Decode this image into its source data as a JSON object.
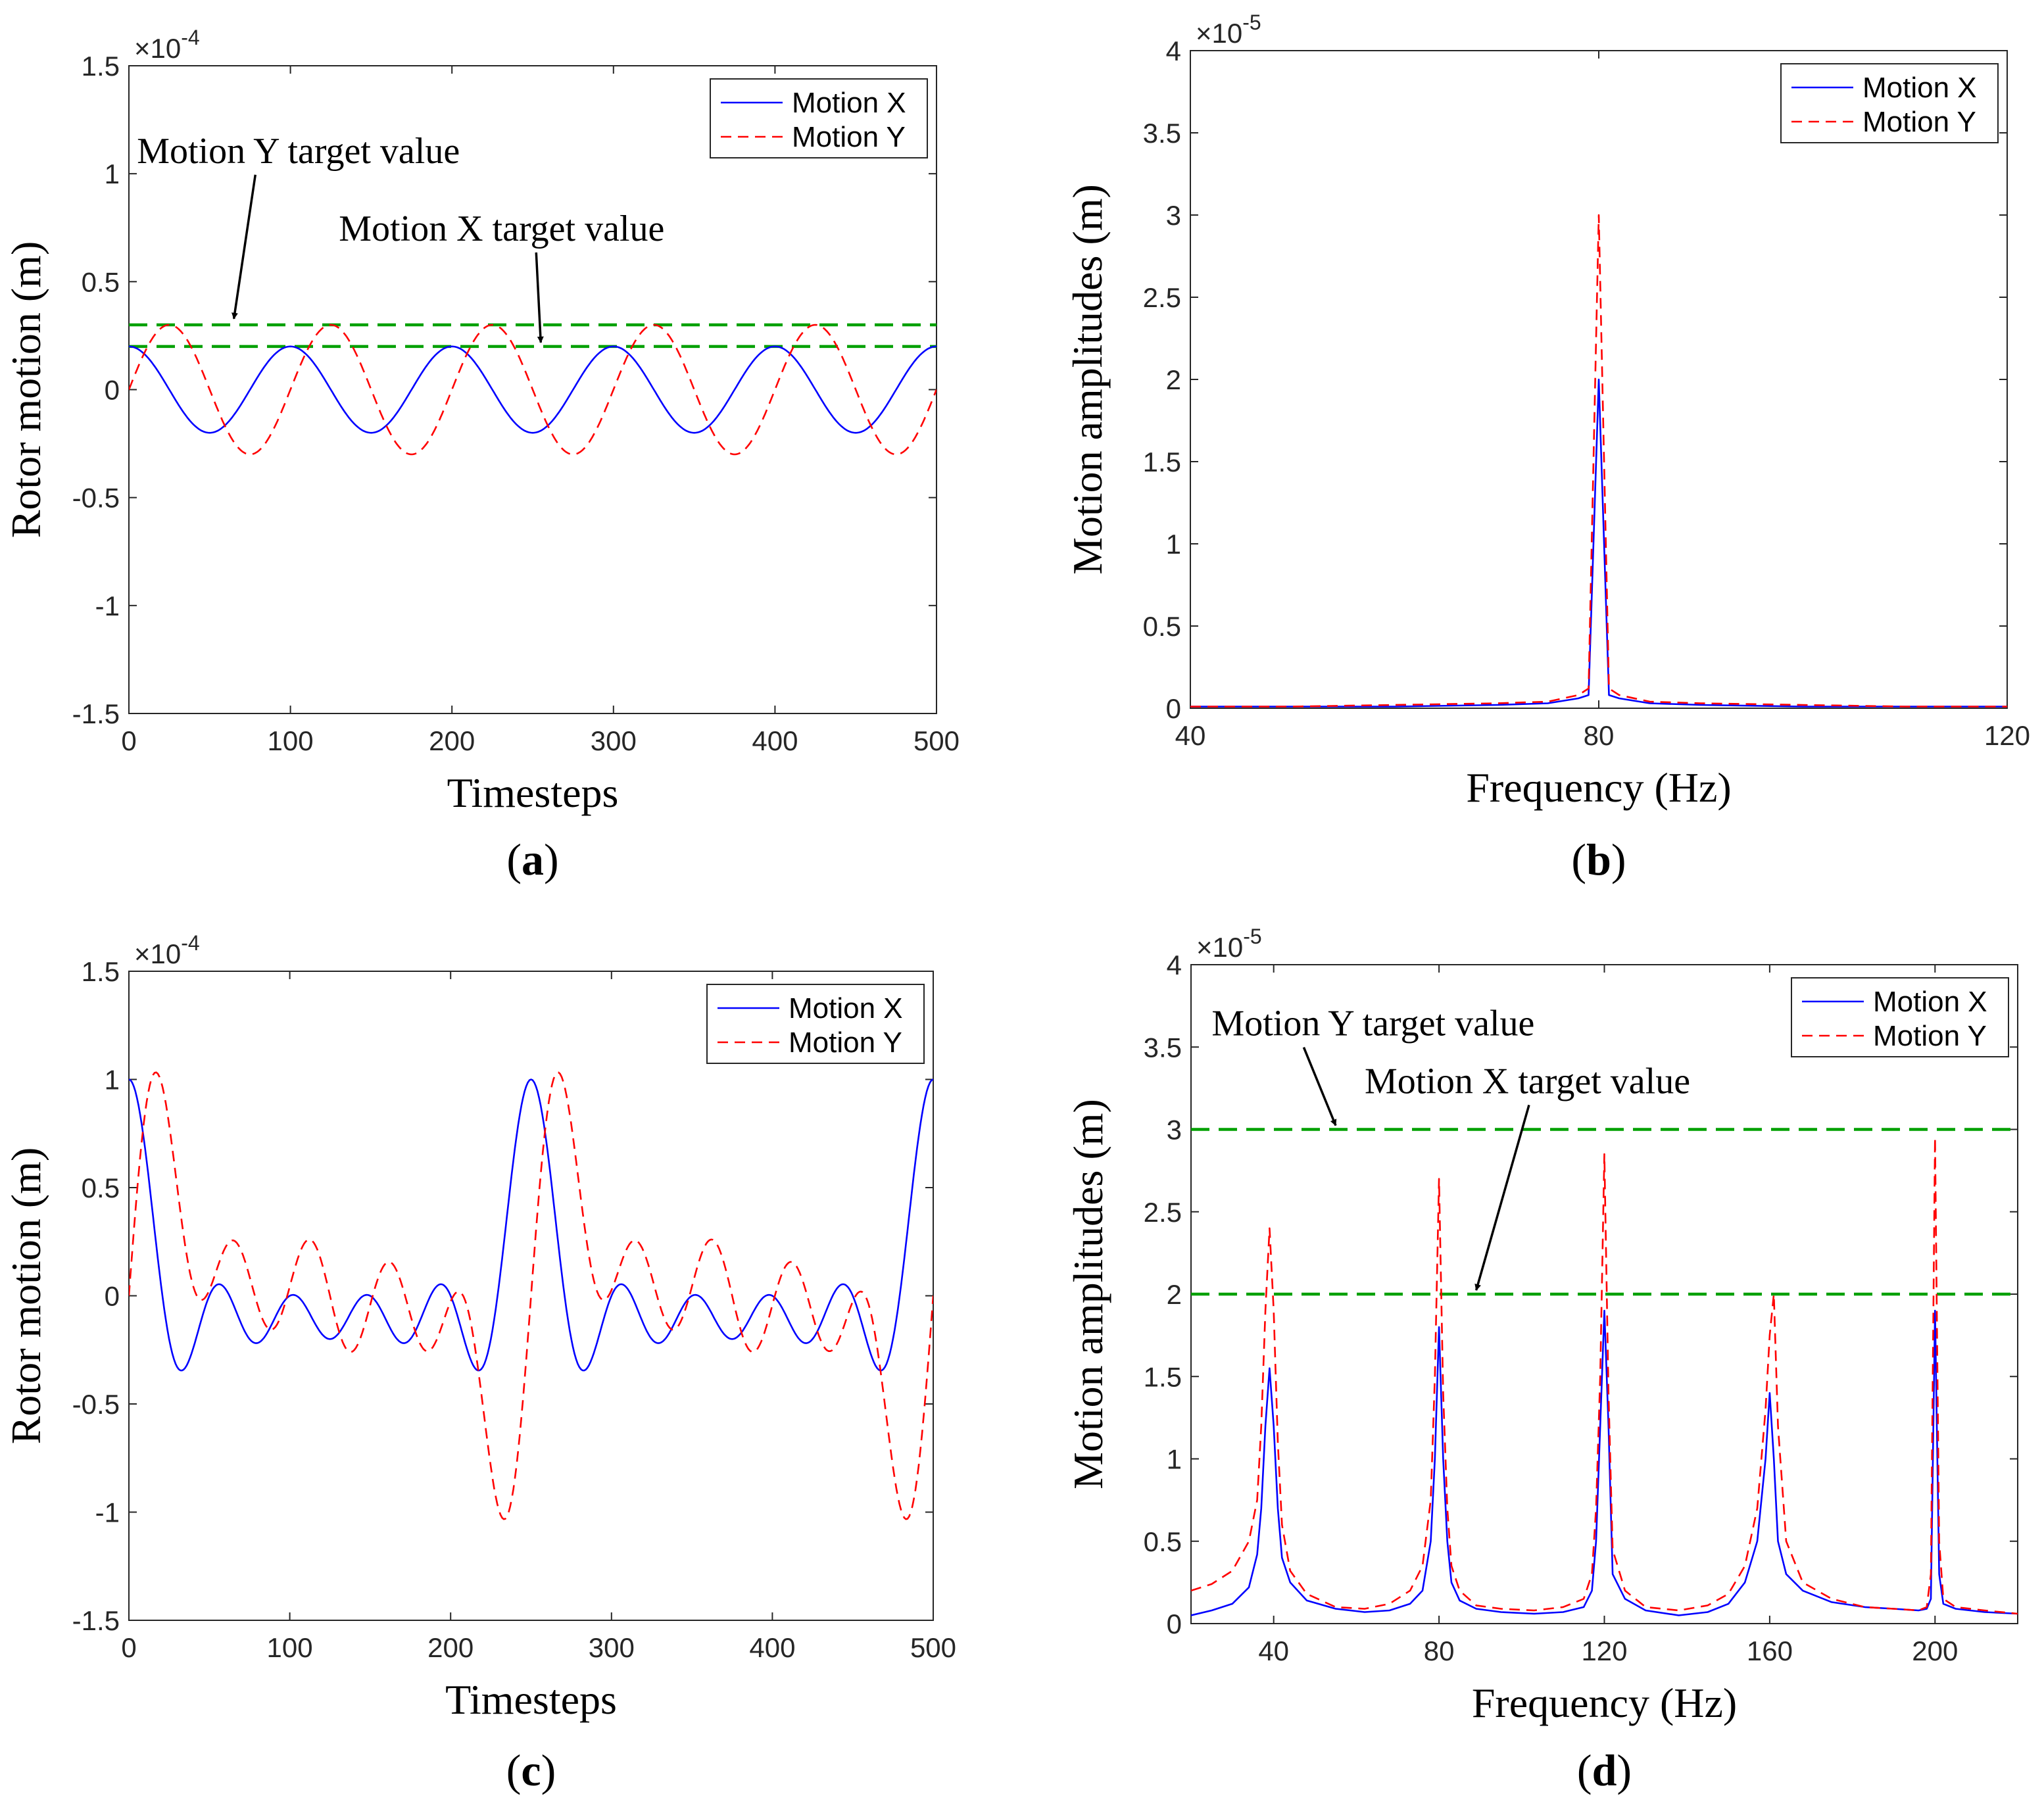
{
  "colors": {
    "motion_x": "#0000ff",
    "motion_y": "#ff0000",
    "target": "#00a000",
    "axis": "#262626"
  },
  "chart_data": [
    {
      "id": "a",
      "panel_letter": "a",
      "type": "line",
      "xlabel": "Timesteps",
      "ylabel": "Rotor  motion (m)",
      "multiplier": "×10",
      "multiplier_exp": "-4",
      "xlim": [
        0,
        500
      ],
      "ylim": [
        -1.5,
        1.5
      ],
      "xticks": [
        0,
        100,
        200,
        300,
        400,
        500
      ],
      "xtick_labels": [
        "0",
        "100",
        "200",
        "300",
        "400",
        "500"
      ],
      "yticks": [
        -1.5,
        -1,
        -0.5,
        0,
        0.5,
        1,
        1.5
      ],
      "ytick_labels": [
        "-1.5",
        "-1",
        "-0.5",
        "0",
        "0.5",
        "1",
        "1.5"
      ],
      "legend": {
        "position": "top-right",
        "entries": [
          "Motion X",
          "Motion Y"
        ]
      },
      "series": [
        {
          "name": "Motion X",
          "style": "solid",
          "generator": "cos",
          "amplitude": 0.2,
          "period": 100,
          "phase": 0,
          "samples": 501
        },
        {
          "name": "Motion Y",
          "style": "dashed",
          "generator": "sin",
          "amplitude": 0.3,
          "period": 100,
          "phase": 0,
          "samples": 501
        }
      ],
      "targets": [
        {
          "label": "Motion Y target value",
          "value": 0.3
        },
        {
          "label": "Motion X target value",
          "value": 0.2
        }
      ],
      "annotations": [
        {
          "text": "Motion Y target value",
          "tx": 5,
          "ty": 1.05,
          "ax": 65,
          "ay": 0.31
        },
        {
          "text": "Motion X target value",
          "tx": 130,
          "ty": 0.69,
          "ax": 255,
          "ay": 0.2
        }
      ]
    },
    {
      "id": "b",
      "panel_letter": "b",
      "type": "line",
      "xlabel": "Frequency (Hz)",
      "ylabel": "Motion  amplitudes (m)",
      "multiplier": "×10",
      "multiplier_exp": "-5",
      "xlim": [
        40,
        120
      ],
      "ylim": [
        0,
        4
      ],
      "xticks": [
        40,
        80,
        120
      ],
      "xtick_labels": [
        "40",
        "80",
        "120"
      ],
      "yticks": [
        0,
        0.5,
        1,
        1.5,
        2,
        2.5,
        3,
        3.5,
        4
      ],
      "ytick_labels": [
        "0",
        "0.5",
        "1",
        "1.5",
        "2",
        "2.5",
        "3",
        "3.5",
        "4"
      ],
      "legend": {
        "position": "top-right",
        "entries": [
          "Motion X",
          "Motion Y"
        ]
      },
      "series": [
        {
          "name": "Motion X",
          "style": "solid",
          "x": [
            40,
            50,
            60,
            70,
            75,
            78,
            79,
            80,
            81,
            82,
            85,
            90,
            100,
            110,
            120
          ],
          "y": [
            0.01,
            0.01,
            0.01,
            0.02,
            0.03,
            0.06,
            0.08,
            2.0,
            0.08,
            0.06,
            0.03,
            0.02,
            0.01,
            0.01,
            0.01
          ]
        },
        {
          "name": "Motion Y",
          "style": "dashed",
          "x": [
            40,
            50,
            60,
            70,
            75,
            78,
            79,
            80,
            81,
            82,
            85,
            90,
            100,
            110,
            120
          ],
          "y": [
            0.01,
            0.01,
            0.02,
            0.03,
            0.04,
            0.08,
            0.12,
            3.0,
            0.12,
            0.08,
            0.04,
            0.03,
            0.02,
            0.01,
            0.01
          ]
        }
      ],
      "targets": [],
      "annotations": []
    },
    {
      "id": "c",
      "panel_letter": "c",
      "type": "line",
      "xlabel": "Timesteps",
      "ylabel": "Rotor  motion (m)",
      "multiplier": "×10",
      "multiplier_exp": "-4",
      "xlim": [
        0,
        500
      ],
      "ylim": [
        -1.5,
        1.5
      ],
      "xticks": [
        0,
        100,
        200,
        300,
        400,
        500
      ],
      "xtick_labels": [
        "0",
        "100",
        "200",
        "300",
        "400",
        "500"
      ],
      "yticks": [
        -1.5,
        -1,
        -0.5,
        0,
        0.5,
        1,
        1.5
      ],
      "ytick_labels": [
        "-1.5",
        "-1",
        "-0.5",
        "0",
        "0.5",
        "1",
        "1.5"
      ],
      "legend": {
        "position": "top-right",
        "entries": [
          "Motion X",
          "Motion Y"
        ]
      },
      "series": [
        {
          "name": "Motion X",
          "style": "solid",
          "generator": "multitone",
          "func": "cos",
          "period": 250,
          "harmonics": [
            1,
            2,
            3,
            4,
            5
          ],
          "amplitudes": [
            0.2,
            0.2,
            0.2,
            0.2,
            0.2
          ],
          "samples": 501
        },
        {
          "name": "Motion Y",
          "style": "dashed",
          "generator": "multitone",
          "func": "sin",
          "period": 250,
          "harmonics": [
            1,
            2,
            3,
            4,
            5
          ],
          "amplitudes": [
            0.24,
            0.27,
            0.29,
            0.2,
            0.3
          ],
          "samples": 501
        }
      ],
      "targets": [],
      "annotations": []
    },
    {
      "id": "d",
      "panel_letter": "d",
      "type": "line",
      "xlabel": "Frequency (Hz)",
      "ylabel": "Motion amplitudes (m)",
      "multiplier": "×10",
      "multiplier_exp": "-5",
      "xlim": [
        20,
        220
      ],
      "ylim": [
        0,
        4
      ],
      "xticks": [
        40,
        80,
        120,
        160,
        200
      ],
      "xtick_labels": [
        "40",
        "80",
        "120",
        "160",
        "200"
      ],
      "yticks": [
        0,
        0.5,
        1,
        1.5,
        2,
        2.5,
        3,
        3.5,
        4
      ],
      "ytick_labels": [
        "0",
        "0.5",
        "1",
        "1.5",
        "2",
        "2.5",
        "3",
        "3.5",
        "4"
      ],
      "legend": {
        "position": "top-right",
        "entries": [
          "Motion X",
          "Motion Y"
        ]
      },
      "series": [
        {
          "name": "Motion X",
          "style": "solid",
          "x": [
            20,
            25,
            30,
            34,
            36,
            37,
            38,
            39,
            40,
            41,
            42,
            44,
            48,
            55,
            62,
            68,
            73,
            76,
            78,
            79,
            80,
            81,
            82,
            83,
            85,
            89,
            95,
            103,
            110,
            115,
            117,
            118,
            119,
            120,
            121,
            122,
            125,
            130,
            138,
            145,
            150,
            154,
            157,
            159,
            160,
            161,
            162,
            164,
            168,
            175,
            183,
            190,
            196,
            198,
            199,
            200,
            201,
            202,
            205,
            212,
            220
          ],
          "y": [
            0.05,
            0.08,
            0.12,
            0.22,
            0.42,
            0.7,
            1.2,
            1.55,
            1.2,
            0.7,
            0.4,
            0.25,
            0.14,
            0.09,
            0.07,
            0.08,
            0.12,
            0.2,
            0.5,
            1.0,
            1.8,
            1.0,
            0.5,
            0.25,
            0.14,
            0.09,
            0.07,
            0.06,
            0.07,
            0.1,
            0.2,
            0.5,
            1.2,
            1.9,
            1.2,
            0.3,
            0.15,
            0.08,
            0.05,
            0.07,
            0.12,
            0.25,
            0.5,
            1.0,
            1.4,
            1.0,
            0.5,
            0.3,
            0.2,
            0.13,
            0.1,
            0.09,
            0.08,
            0.09,
            0.15,
            1.9,
            0.3,
            0.12,
            0.09,
            0.07,
            0.06
          ]
        },
        {
          "name": "Motion Y",
          "style": "dashed",
          "x": [
            20,
            25,
            30,
            34,
            36,
            37,
            38,
            39,
            40,
            41,
            42,
            44,
            48,
            55,
            62,
            68,
            73,
            76,
            78,
            79,
            80,
            81,
            82,
            83,
            85,
            89,
            95,
            103,
            110,
            115,
            117,
            118,
            119,
            120,
            121,
            122,
            125,
            130,
            138,
            145,
            150,
            154,
            157,
            159,
            160,
            161,
            162,
            164,
            168,
            175,
            183,
            190,
            196,
            198,
            199,
            200,
            201,
            202,
            205,
            212,
            220
          ],
          "y": [
            0.2,
            0.24,
            0.32,
            0.5,
            0.75,
            1.2,
            1.9,
            2.4,
            1.9,
            1.1,
            0.6,
            0.32,
            0.18,
            0.1,
            0.09,
            0.12,
            0.2,
            0.35,
            0.75,
            1.5,
            2.7,
            1.4,
            0.7,
            0.35,
            0.2,
            0.11,
            0.09,
            0.08,
            0.1,
            0.15,
            0.3,
            0.7,
            1.5,
            2.85,
            1.4,
            0.45,
            0.2,
            0.1,
            0.08,
            0.11,
            0.18,
            0.35,
            0.7,
            1.3,
            1.75,
            2.0,
            1.2,
            0.5,
            0.25,
            0.15,
            0.1,
            0.09,
            0.08,
            0.1,
            0.3,
            2.95,
            0.5,
            0.15,
            0.1,
            0.08,
            0.06
          ]
        }
      ],
      "targets": [
        {
          "label": "Motion Y target value",
          "value": 3.0
        },
        {
          "label": "Motion X target value",
          "value": 2.0
        }
      ],
      "annotations": [
        {
          "text": "Motion Y target value",
          "tx": 25,
          "ty": 3.57,
          "ax": 55,
          "ay": 3.0
        },
        {
          "text": "Motion X target value",
          "tx": 62,
          "ty": 3.22,
          "ax": 89,
          "ay": 2.0
        }
      ]
    }
  ]
}
